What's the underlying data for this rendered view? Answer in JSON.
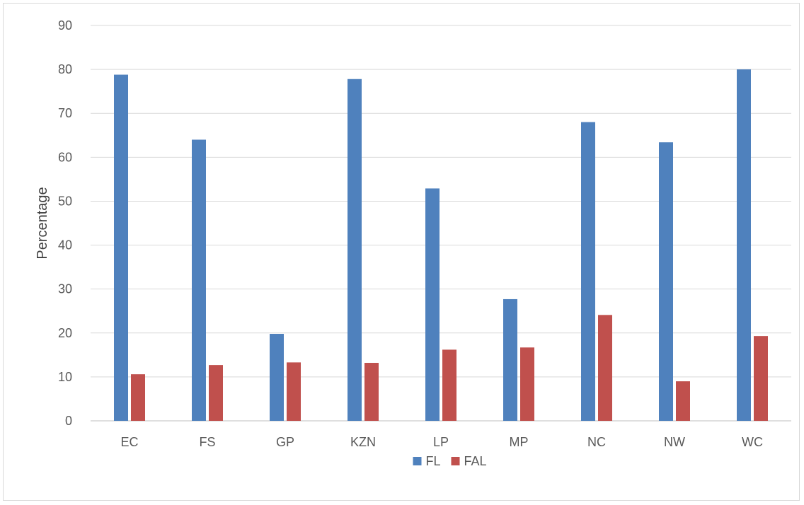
{
  "chart_data": {
    "type": "bar",
    "title": "",
    "xlabel": "",
    "ylabel": "Percentage",
    "ylim": [
      0,
      90
    ],
    "y_ticks": [
      0,
      10,
      20,
      30,
      40,
      50,
      60,
      70,
      80,
      90
    ],
    "grid": true,
    "legend_position": "bottom",
    "categories": [
      "EC",
      "FS",
      "GP",
      "KZN",
      "LP",
      "MP",
      "NC",
      "NW",
      "WC"
    ],
    "series": [
      {
        "name": "FL",
        "color": "#4F81BD",
        "values": [
          78.8,
          64.0,
          19.8,
          77.8,
          52.9,
          27.7,
          68.0,
          63.4,
          80.0
        ]
      },
      {
        "name": "FAL",
        "color": "#C0504D",
        "values": [
          10.6,
          12.7,
          13.3,
          13.2,
          16.2,
          16.7,
          24.1,
          9.0,
          19.3
        ]
      }
    ]
  }
}
